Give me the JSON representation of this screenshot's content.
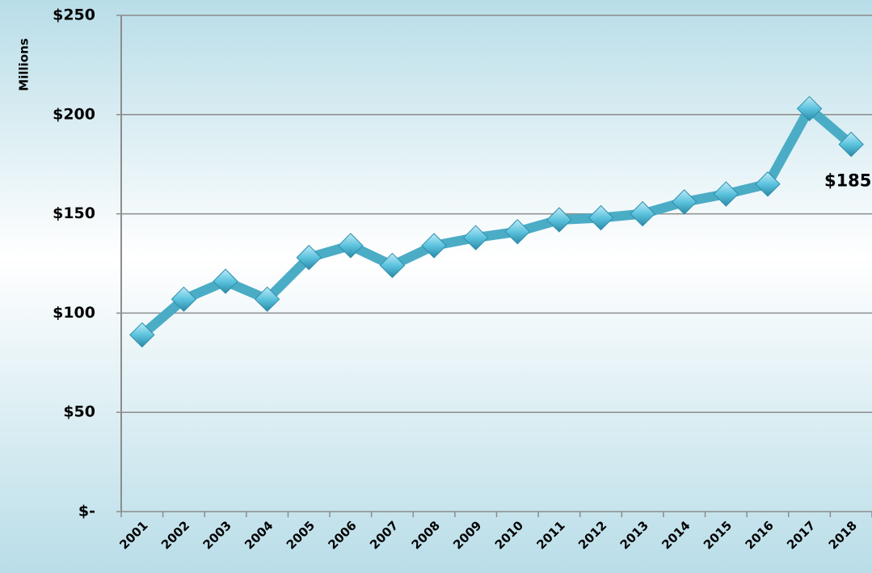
{
  "chart_data": {
    "type": "line",
    "y_label": "Millions",
    "categories": [
      "2001",
      "2002",
      "2003",
      "2004",
      "2005",
      "2006",
      "2007",
      "2008",
      "2009",
      "2010",
      "2011",
      "2012",
      "2013",
      "2014",
      "2015",
      "2016",
      "2017",
      "2018"
    ],
    "series": [
      {
        "name": null,
        "color": "#4bacc6",
        "values": [
          89,
          107,
          116,
          107,
          128,
          134,
          124,
          134,
          138,
          141,
          147,
          148,
          150,
          156,
          160,
          165,
          203,
          185
        ],
        "value_labels": [
          null,
          null,
          null,
          null,
          null,
          null,
          null,
          null,
          null,
          null,
          null,
          null,
          null,
          null,
          null,
          null,
          null,
          "$185"
        ]
      }
    ],
    "ylim": [
      0,
      250
    ],
    "yticks": [
      {
        "value": 0,
        "label": "$-"
      },
      {
        "value": 50,
        "label": "$50"
      },
      {
        "value": 100,
        "label": "$100"
      },
      {
        "value": 150,
        "label": "$150"
      },
      {
        "value": 200,
        "label": "$200"
      },
      {
        "value": 250,
        "label": "$250"
      }
    ],
    "grid": true
  }
}
